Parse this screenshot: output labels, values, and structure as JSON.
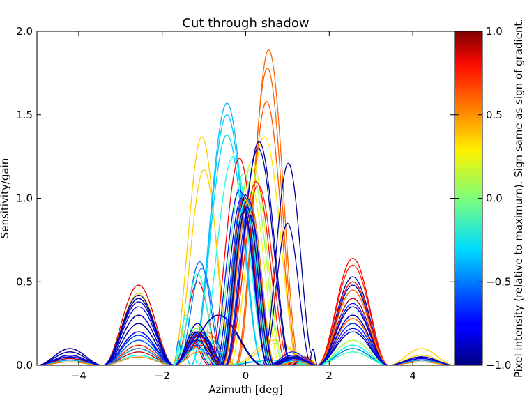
{
  "chart_data": {
    "type": "line",
    "title": "Cut through shadow",
    "xlabel": "Azimuth [deg]",
    "ylabel": "Sensitivity/gain",
    "xlim": [
      -5,
      5
    ],
    "ylim": [
      0,
      2
    ],
    "xticks": [
      -4,
      -2,
      0,
      2,
      4
    ],
    "xtick_labels": [
      "−4",
      "−2",
      "0",
      "2",
      "4"
    ],
    "yticks": [
      0,
      0.5,
      1,
      1.5,
      2
    ],
    "ytick_labels": [
      "0.0",
      "0.5",
      "1.0",
      "1.5",
      "2.0"
    ],
    "grid": false,
    "colorbar": {
      "label": "Pixel intensity (relative to maximum). Sign same as sign of gradient.",
      "range": [
        -1,
        1
      ],
      "ticks": [
        -1,
        -0.5,
        0,
        0.5,
        1
      ],
      "tick_labels": [
        "−1.0",
        "−0.5",
        "0.0",
        "0.5",
        "1.0"
      ],
      "colormap": "jet"
    },
    "nulls": [
      -3.42,
      -1.71,
      1.71,
      3.42
    ],
    "series": [
      {
        "color_value": 0.82,
        "main_peak": 0.98,
        "main_center": 0.0,
        "main_halfwidth": 0.55,
        "lobes": [
          0.48,
          0.1,
          0.5,
          0.06,
          0.28,
          0.05
        ]
      },
      {
        "color_value": 0.55,
        "main_peak": 1.89,
        "main_center": 0.55,
        "main_halfwidth": 0.72,
        "lobes": [
          0.2,
          0.05,
          0.2,
          0.03,
          0.3,
          0.05
        ]
      },
      {
        "color_value": 0.55,
        "main_peak": 1.78,
        "main_center": 0.52,
        "main_halfwidth": 0.72,
        "lobes": [
          0.18,
          0.05,
          0.18,
          0.03,
          0.28,
          0.05
        ]
      },
      {
        "color_value": 0.58,
        "main_peak": 1.58,
        "main_center": 0.5,
        "main_halfwidth": 0.72,
        "lobes": [
          0.15,
          0.04,
          0.15,
          0.03,
          0.25,
          0.04
        ]
      },
      {
        "color_value": 0.3,
        "main_peak": 1.37,
        "main_center": 0.45,
        "main_halfwidth": 0.8,
        "lobes": [
          0.3,
          0.08,
          0.2,
          0.06,
          0.15,
          0.05
        ]
      },
      {
        "color_value": 0.35,
        "main_peak": 1.37,
        "main_center": -1.05,
        "main_halfwidth": 0.68,
        "lobes": [
          0.3,
          0.08,
          0.1,
          0.1,
          0.1,
          0.15
        ]
      },
      {
        "color_value": 0.35,
        "main_peak": 1.17,
        "main_center": -1.0,
        "main_halfwidth": 0.68,
        "lobes": [
          0.43,
          0.08,
          0.1,
          0.1,
          0.1,
          0.13
        ]
      },
      {
        "color_value": -0.38,
        "main_peak": 1.57,
        "main_center": -0.45,
        "main_halfwidth": 0.82,
        "lobes": [
          0.2,
          0.05,
          0.1,
          0.05,
          0.12,
          0.04
        ]
      },
      {
        "color_value": -0.36,
        "main_peak": 1.5,
        "main_center": -0.45,
        "main_halfwidth": 0.82,
        "lobes": [
          0.18,
          0.05,
          0.1,
          0.05,
          0.12,
          0.04
        ]
      },
      {
        "color_value": -0.34,
        "main_peak": 1.38,
        "main_center": -0.45,
        "main_halfwidth": 0.82,
        "lobes": [
          0.15,
          0.05,
          0.1,
          0.05,
          0.1,
          0.04
        ]
      },
      {
        "color_value": -0.2,
        "main_peak": 1.25,
        "main_center": -0.3,
        "main_halfwidth": 0.8,
        "lobes": [
          0.12,
          0.04,
          0.3,
          0.04,
          0.15,
          0.03
        ]
      },
      {
        "color_value": 0.15,
        "main_peak": 1.22,
        "main_center": 0.15,
        "main_halfwidth": 0.75,
        "lobes": [
          0.1,
          0.03,
          0.25,
          0.03,
          0.12,
          0.03
        ]
      },
      {
        "color_value": 0.05,
        "main_peak": 1.18,
        "main_center": 0.12,
        "main_halfwidth": 0.75,
        "lobes": [
          0.1,
          0.03,
          0.22,
          0.03,
          0.1,
          0.03
        ]
      },
      {
        "color_value": -0.05,
        "main_peak": 1.15,
        "main_center": -0.05,
        "main_halfwidth": 0.72,
        "lobes": [
          0.12,
          0.03,
          0.2,
          0.03,
          0.1,
          0.03
        ]
      },
      {
        "color_value": 0.2,
        "main_peak": 1.1,
        "main_center": 0.1,
        "main_halfwidth": 0.7,
        "lobes": [
          0.1,
          0.02,
          0.2,
          0.02,
          0.08,
          0.02
        ]
      },
      {
        "color_value": -0.55,
        "main_peak": 0.62,
        "main_center": -1.1,
        "main_halfwidth": 0.55,
        "lobes": [
          0.2,
          0.05,
          0.15,
          0.05,
          0.1,
          0.03
        ]
      },
      {
        "color_value": -0.5,
        "main_peak": 0.58,
        "main_center": -1.05,
        "main_halfwidth": 0.55,
        "lobes": [
          0.18,
          0.05,
          0.15,
          0.05,
          0.1,
          0.03
        ]
      },
      {
        "color_value": -0.15,
        "main_peak": 0.55,
        "main_center": -1.15,
        "main_halfwidth": 0.5,
        "lobes": [
          0.15,
          0.04,
          0.12,
          0.04,
          0.08,
          0.03
        ]
      },
      {
        "color_value": -0.95,
        "main_peak": 1.34,
        "main_center": 0.32,
        "main_halfwidth": 0.75,
        "lobes": [
          0.4,
          0.08,
          0.2,
          0.05,
          0.5,
          0.05
        ]
      },
      {
        "color_value": -0.9,
        "main_peak": 1.3,
        "main_center": 0.3,
        "main_halfwidth": 0.75,
        "lobes": [
          0.38,
          0.08,
          0.18,
          0.05,
          0.48,
          0.05
        ]
      },
      {
        "color_value": -0.96,
        "main_peak": 1.21,
        "main_center": 1.02,
        "main_halfwidth": 0.6,
        "lobes": [
          0.42,
          0.1,
          0.3,
          0.05,
          0.53,
          0.1
        ]
      },
      {
        "color_value": -0.92,
        "main_peak": 0.85,
        "main_center": 1.0,
        "main_halfwidth": 0.55,
        "lobes": [
          0.4,
          0.1,
          0.3,
          0.05,
          0.45,
          0.1
        ]
      },
      {
        "color_value": 0.75,
        "main_peak": 1.24,
        "main_center": -0.15,
        "main_halfwidth": 0.7,
        "lobes": [
          0.1,
          0.05,
          0.15,
          0.03,
          0.64,
          0.05
        ]
      },
      {
        "color_value": 0.7,
        "main_peak": 1.1,
        "main_center": 0.25,
        "main_halfwidth": 0.7,
        "lobes": [
          0.1,
          0.05,
          0.15,
          0.03,
          0.6,
          0.05
        ]
      },
      {
        "color_value": 0.68,
        "main_peak": 1.08,
        "main_center": 0.3,
        "main_halfwidth": 0.72,
        "lobes": [
          0.12,
          0.05,
          0.12,
          0.03,
          0.5,
          0.05
        ]
      },
      {
        "color_value": -0.7,
        "main_peak": 1.05,
        "main_center": -0.15,
        "main_halfwidth": 0.65,
        "lobes": [
          0.25,
          0.05,
          0.15,
          0.04,
          0.37,
          0.08
        ]
      },
      {
        "color_value": -0.6,
        "main_peak": 1.02,
        "main_center": -0.05,
        "main_halfwidth": 0.6,
        "lobes": [
          0.15,
          0.04,
          0.12,
          0.04,
          0.3,
          0.06
        ]
      },
      {
        "color_value": -0.8,
        "main_peak": 1.0,
        "main_center": -0.1,
        "main_halfwidth": 0.6,
        "lobes": [
          0.35,
          0.06,
          0.2,
          0.04,
          0.3,
          0.06
        ]
      },
      {
        "color_value": -0.75,
        "main_peak": 1.0,
        "main_center": 0.05,
        "main_halfwidth": 0.6,
        "lobes": [
          0.3,
          0.06,
          0.18,
          0.04,
          0.25,
          0.05
        ]
      },
      {
        "color_value": 0.9,
        "main_peak": 1.0,
        "main_center": -0.05,
        "main_halfwidth": 0.55,
        "lobes": [
          0.1,
          0.05,
          0.2,
          0.04,
          0.4,
          0.04
        ]
      },
      {
        "color_value": 0.88,
        "main_peak": 1.0,
        "main_center": 0.05,
        "main_halfwidth": 0.58,
        "lobes": [
          0.08,
          0.04,
          0.18,
          0.04,
          0.35,
          0.04
        ]
      },
      {
        "color_value": -0.85,
        "main_peak": 1.02,
        "main_center": 0.0,
        "main_halfwidth": 0.57,
        "lobes": [
          0.2,
          0.05,
          0.25,
          0.04,
          0.3,
          0.05
        ]
      },
      {
        "color_value": -0.65,
        "main_peak": 0.98,
        "main_center": 0.1,
        "main_halfwidth": 0.57,
        "lobes": [
          0.18,
          0.05,
          0.2,
          0.04,
          0.25,
          0.05
        ]
      },
      {
        "color_value": -0.45,
        "main_peak": 1.0,
        "main_center": 0.02,
        "main_halfwidth": 0.6,
        "lobes": [
          0.1,
          0.03,
          0.15,
          0.03,
          0.2,
          0.03
        ]
      },
      {
        "color_value": 0.1,
        "main_peak": 0.99,
        "main_center": 0.0,
        "main_halfwidth": 0.62,
        "lobes": [
          0.05,
          0.02,
          0.1,
          0.02,
          0.15,
          0.02
        ]
      },
      {
        "color_value": -0.25,
        "main_peak": 0.97,
        "main_center": -0.02,
        "main_halfwidth": 0.6,
        "lobes": [
          0.06,
          0.02,
          0.1,
          0.02,
          0.12,
          0.02
        ]
      },
      {
        "color_value": 0.5,
        "main_peak": 1.0,
        "main_center": 0.08,
        "main_halfwidth": 0.6,
        "lobes": [
          0.05,
          0.02,
          0.08,
          0.02,
          0.45,
          0.02
        ]
      },
      {
        "color_value": -0.98,
        "main_peak": 0.95,
        "main_center": 0.02,
        "main_halfwidth": 0.58,
        "lobes": [
          0.25,
          0.05,
          0.2,
          0.05,
          0.2,
          0.05
        ]
      },
      {
        "color_value": -0.88,
        "main_peak": 0.92,
        "main_center": -0.05,
        "main_halfwidth": 0.55,
        "lobes": [
          0.3,
          0.06,
          0.15,
          0.05,
          0.35,
          0.05
        ]
      },
      {
        "color_value": -0.78,
        "main_peak": 0.9,
        "main_center": 0.1,
        "main_halfwidth": 0.55,
        "lobes": [
          0.2,
          0.05,
          0.18,
          0.04,
          0.22,
          0.04
        ]
      }
    ]
  }
}
